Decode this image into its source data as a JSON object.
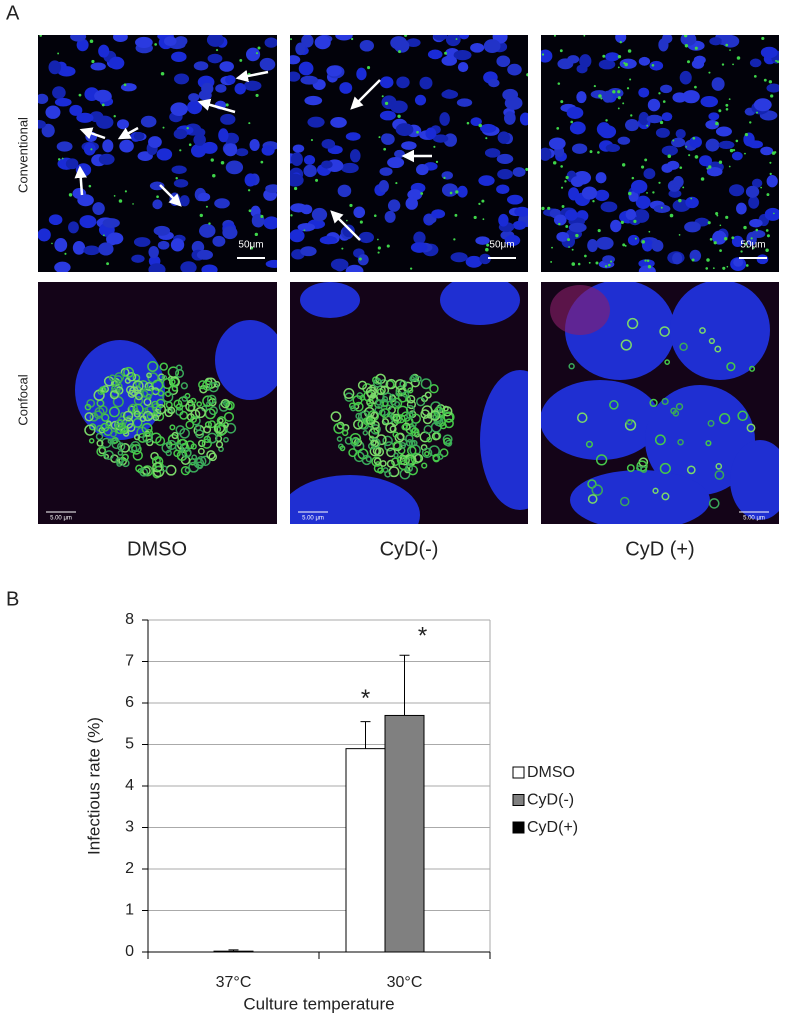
{
  "panel_a": {
    "label": "A",
    "rows": [
      "Conventional",
      "Confocal"
    ],
    "columns": [
      "DMSO",
      "CyD(-)",
      "CyD (+)"
    ],
    "scale_bars": {
      "conventional": "50μm",
      "confocal": "5.00 μm"
    }
  },
  "panel_b_label": "B",
  "chart_data": {
    "type": "bar",
    "y_label": "Infectious rate (%)",
    "x_label": "Culture temperature",
    "categories": [
      "37°C",
      "30°C"
    ],
    "series": [
      {
        "name": "DMSO",
        "color": "#ffffff",
        "values": [
          0,
          4.9
        ],
        "errors": [
          0,
          0.65
        ]
      },
      {
        "name": "CyD(-)",
        "color": "#808080",
        "values": [
          0.02,
          5.7
        ],
        "errors": [
          0.03,
          1.45
        ]
      },
      {
        "name": "CyD(+)",
        "color": "#000000",
        "values": [
          0,
          0
        ],
        "errors": [
          0,
          0
        ]
      }
    ],
    "annotations": [
      {
        "text": "*",
        "series": 0,
        "category": 1
      },
      {
        "text": "*",
        "series": 1,
        "category": 1
      }
    ],
    "ylim": [
      0,
      8
    ],
    "yticks": [
      0,
      1,
      2,
      3,
      4,
      5,
      6,
      7,
      8
    ],
    "grid": true,
    "legend": "right"
  }
}
